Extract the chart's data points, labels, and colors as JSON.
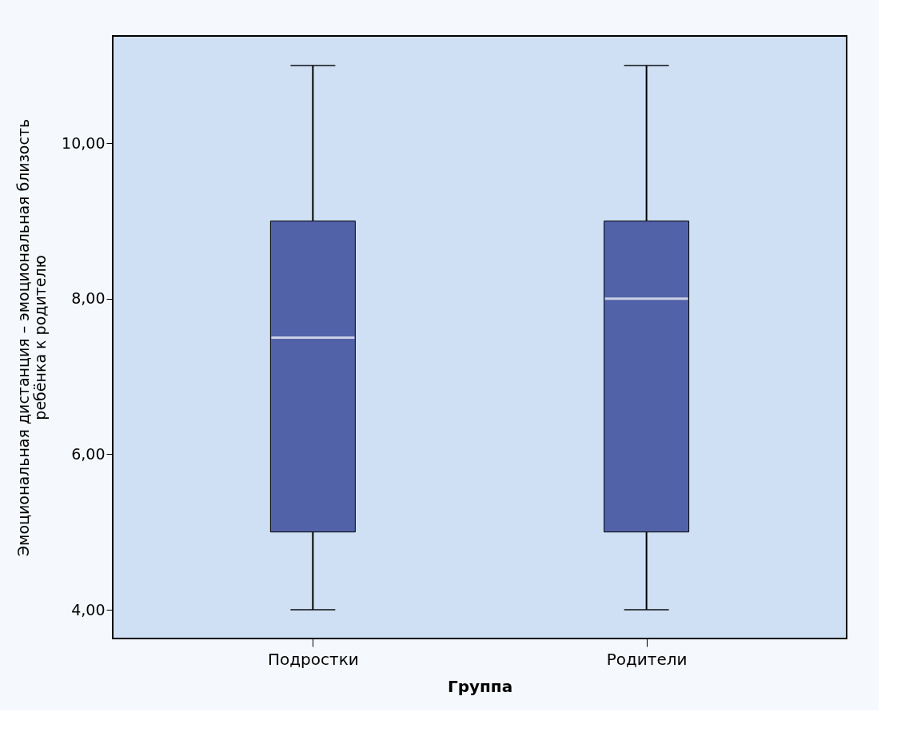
{
  "chart_data": {
    "type": "box",
    "xlabel": "Группа",
    "ylabel": "Эмоциональная дистанция – эмоциональная близость\nребёнка к родителю",
    "categories": [
      "Подростки",
      "Родители"
    ],
    "series": [
      {
        "color": "#5262a8",
        "boxes": [
          {
            "low": 4,
            "q1": 5,
            "median": 7.5,
            "q3": 9,
            "high": 11
          },
          {
            "low": 4,
            "q1": 5,
            "median": 8,
            "q3": 9,
            "high": 11
          }
        ]
      }
    ],
    "ylim": [
      3.63,
      11.38
    ],
    "yticks": [
      {
        "value": 4,
        "label": "4,00"
      },
      {
        "value": 6,
        "label": "6,00"
      },
      {
        "value": 8,
        "label": "8,00"
      },
      {
        "value": 10,
        "label": "10,00"
      }
    ],
    "grid": false
  }
}
